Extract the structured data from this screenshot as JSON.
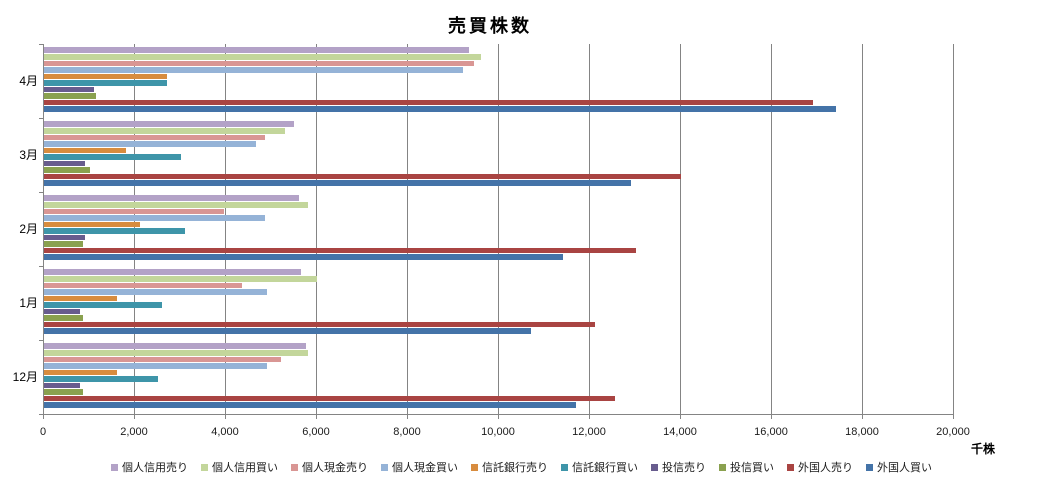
{
  "chart_data": {
    "type": "bar",
    "orientation": "horizontal",
    "title": "売買株数",
    "xlabel": "千株",
    "categories": [
      "4月",
      "3月",
      "2月",
      "1月",
      "12月"
    ],
    "x_ticks": [
      "0",
      "2,000",
      "4,000",
      "6,000",
      "8,000",
      "10,000",
      "12,000",
      "14,000",
      "16,000",
      "18,000",
      "20,000"
    ],
    "xlim": [
      0,
      20000
    ],
    "grid": "vertical-gridlines-every-2000",
    "legend_position": "bottom",
    "gridline_color": "#848484",
    "series": [
      {
        "name": "個人信用売り",
        "color": "#b3a2c7",
        "values": [
          9350,
          5500,
          5600,
          5650,
          5750
        ]
      },
      {
        "name": "個人信用買い",
        "color": "#c3d69b",
        "values": [
          9600,
          5300,
          5800,
          6000,
          5800
        ]
      },
      {
        "name": "個人現金売り",
        "color": "#d99694",
        "values": [
          9450,
          4850,
          3950,
          4350,
          5200
        ]
      },
      {
        "name": "個人現金買い",
        "color": "#95b3d7",
        "values": [
          9200,
          4650,
          4850,
          4900,
          4900
        ]
      },
      {
        "name": "信託銀行売り",
        "color": "#d88c3e",
        "values": [
          2700,
          1800,
          2100,
          1600,
          1600
        ]
      },
      {
        "name": "信託銀行買い",
        "color": "#3e95a9",
        "values": [
          2700,
          3000,
          3100,
          2600,
          2500
        ]
      },
      {
        "name": "投信売り",
        "color": "#685c8e",
        "values": [
          1100,
          900,
          900,
          800,
          800
        ]
      },
      {
        "name": "投信買い",
        "color": "#8aa14f",
        "values": [
          1150,
          1000,
          850,
          850,
          850
        ]
      },
      {
        "name": "外国人売り",
        "color": "#a94442",
        "values": [
          16900,
          14000,
          13000,
          12100,
          12550
        ]
      },
      {
        "name": "外国人買い",
        "color": "#4473a8",
        "values": [
          17400,
          12900,
          11400,
          10700,
          11700
        ]
      }
    ]
  }
}
